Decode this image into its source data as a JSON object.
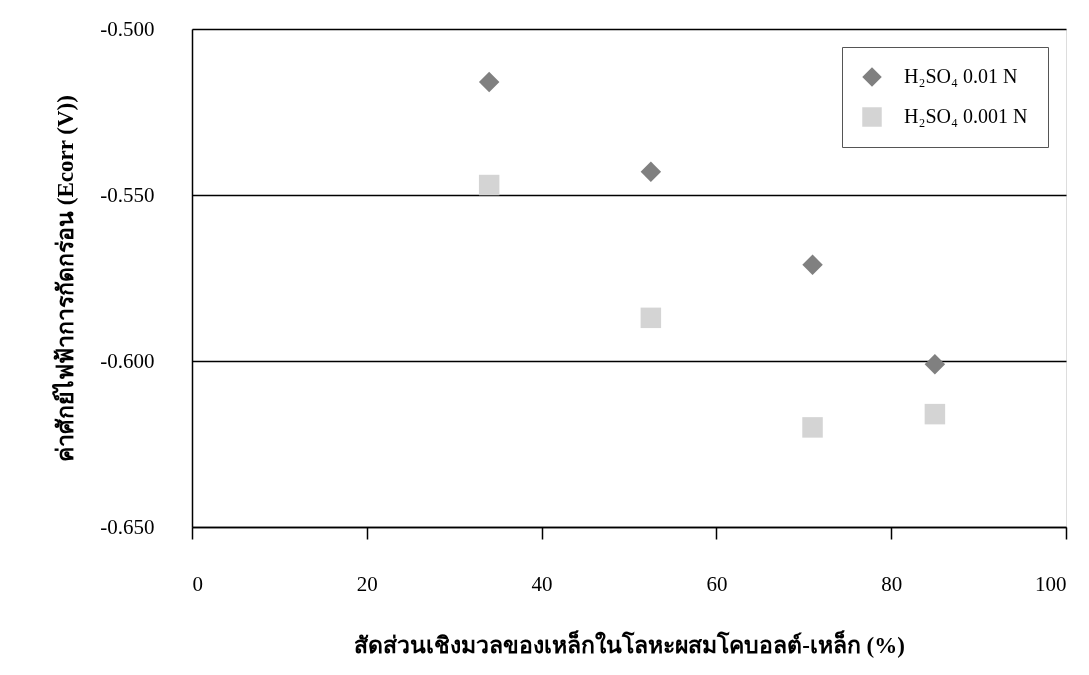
{
  "chart_data": {
    "type": "scatter",
    "xlabel": "สัดส่วนเชิงมวลของเหล็กในโลหะผสมโคบอลต์-เหล็ก (%)",
    "ylabel": "ค่าศักย์ไฟฟ้าการกัดกร่อน (Ecorr (V))",
    "x": [
      34,
      52.5,
      71,
      85
    ],
    "series": [
      {
        "name": "H₂SO₄ 0.01 N",
        "color": "#808080",
        "marker": "diamond",
        "values": [
          -0.516,
          -0.543,
          -0.571,
          -0.601
        ]
      },
      {
        "name": "H₂SO₄ 0.001 N",
        "color": "#d4d4d4",
        "marker": "square",
        "values": [
          -0.547,
          -0.587,
          -0.62,
          -0.616
        ]
      }
    ],
    "xlim": [
      0,
      100
    ],
    "xticks": [
      0,
      20,
      40,
      60,
      80,
      100
    ],
    "ylim": [
      -0.65,
      -0.5
    ],
    "yticks": [
      {
        "value": -0.65,
        "label": "-0.650"
      },
      {
        "value": -0.6,
        "label": "-0.600"
      },
      {
        "value": -0.55,
        "label": "-0.550"
      },
      {
        "value": -0.5,
        "label": "-0.500"
      }
    ],
    "grid": "y",
    "legend": "top right"
  }
}
